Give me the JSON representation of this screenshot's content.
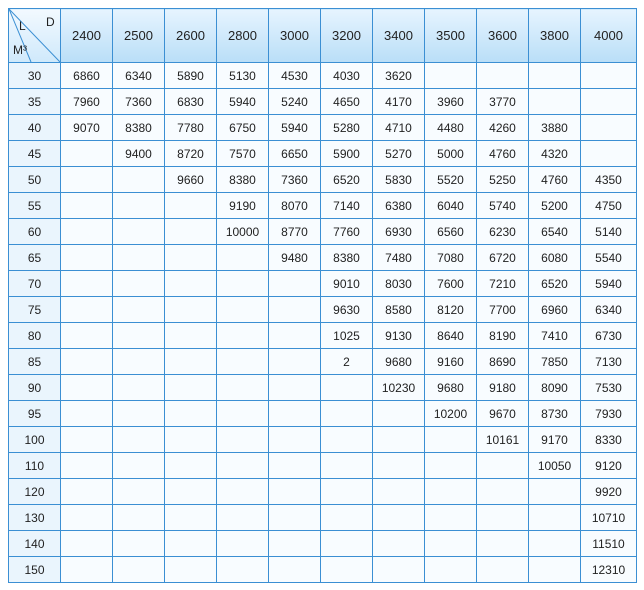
{
  "table": {
    "corner": {
      "top_left": "L",
      "top_right": "D",
      "bottom": "M³"
    },
    "columns": [
      2400,
      2500,
      2600,
      2800,
      3000,
      3200,
      3400,
      3500,
      3600,
      3800,
      4000
    ],
    "rows": [
      [
        30,
        6860,
        6340,
        5890,
        5130,
        4530,
        4030,
        3620,
        null,
        null,
        null,
        null
      ],
      [
        35,
        7960,
        7360,
        6830,
        5940,
        5240,
        4650,
        4170,
        3960,
        3770,
        null,
        null
      ],
      [
        40,
        9070,
        8380,
        7780,
        6750,
        5940,
        5280,
        4710,
        4480,
        4260,
        3880,
        null
      ],
      [
        45,
        null,
        9400,
        8720,
        7570,
        6650,
        5900,
        5270,
        5000,
        4760,
        4320,
        null
      ],
      [
        50,
        null,
        null,
        9660,
        8380,
        7360,
        6520,
        5830,
        5520,
        5250,
        4760,
        4350
      ],
      [
        55,
        null,
        null,
        null,
        9190,
        8070,
        7140,
        6380,
        6040,
        5740,
        5200,
        4750
      ],
      [
        60,
        null,
        null,
        null,
        10000,
        8770,
        7760,
        6930,
        6560,
        6230,
        6540,
        5140
      ],
      [
        65,
        null,
        null,
        null,
        null,
        9480,
        8380,
        7480,
        7080,
        6720,
        6080,
        5540
      ],
      [
        70,
        null,
        null,
        null,
        null,
        null,
        9010,
        8030,
        7600,
        7210,
        6520,
        5940
      ],
      [
        75,
        null,
        null,
        null,
        null,
        null,
        9630,
        8580,
        8120,
        7700,
        6960,
        6340
      ],
      [
        80,
        null,
        null,
        null,
        null,
        null,
        1025,
        9130,
        8640,
        8190,
        7410,
        6730
      ],
      [
        85,
        null,
        null,
        null,
        null,
        null,
        2,
        9680,
        9160,
        8690,
        7850,
        7130
      ],
      [
        90,
        null,
        null,
        null,
        null,
        null,
        null,
        10230,
        9680,
        9180,
        8090,
        7530
      ],
      [
        95,
        null,
        null,
        null,
        null,
        null,
        null,
        null,
        10200,
        9670,
        8730,
        7930
      ],
      [
        100,
        null,
        null,
        null,
        null,
        null,
        null,
        null,
        null,
        10161,
        9170,
        8330
      ],
      [
        110,
        null,
        null,
        null,
        null,
        null,
        null,
        null,
        null,
        null,
        10050,
        9120
      ],
      [
        120,
        null,
        null,
        null,
        null,
        null,
        null,
        null,
        null,
        null,
        null,
        9920
      ],
      [
        130,
        null,
        null,
        null,
        null,
        null,
        null,
        null,
        null,
        null,
        null,
        10710
      ],
      [
        140,
        null,
        null,
        null,
        null,
        null,
        null,
        null,
        null,
        null,
        null,
        11510
      ],
      [
        150,
        null,
        null,
        null,
        null,
        null,
        null,
        null,
        null,
        null,
        null,
        12310
      ]
    ]
  }
}
